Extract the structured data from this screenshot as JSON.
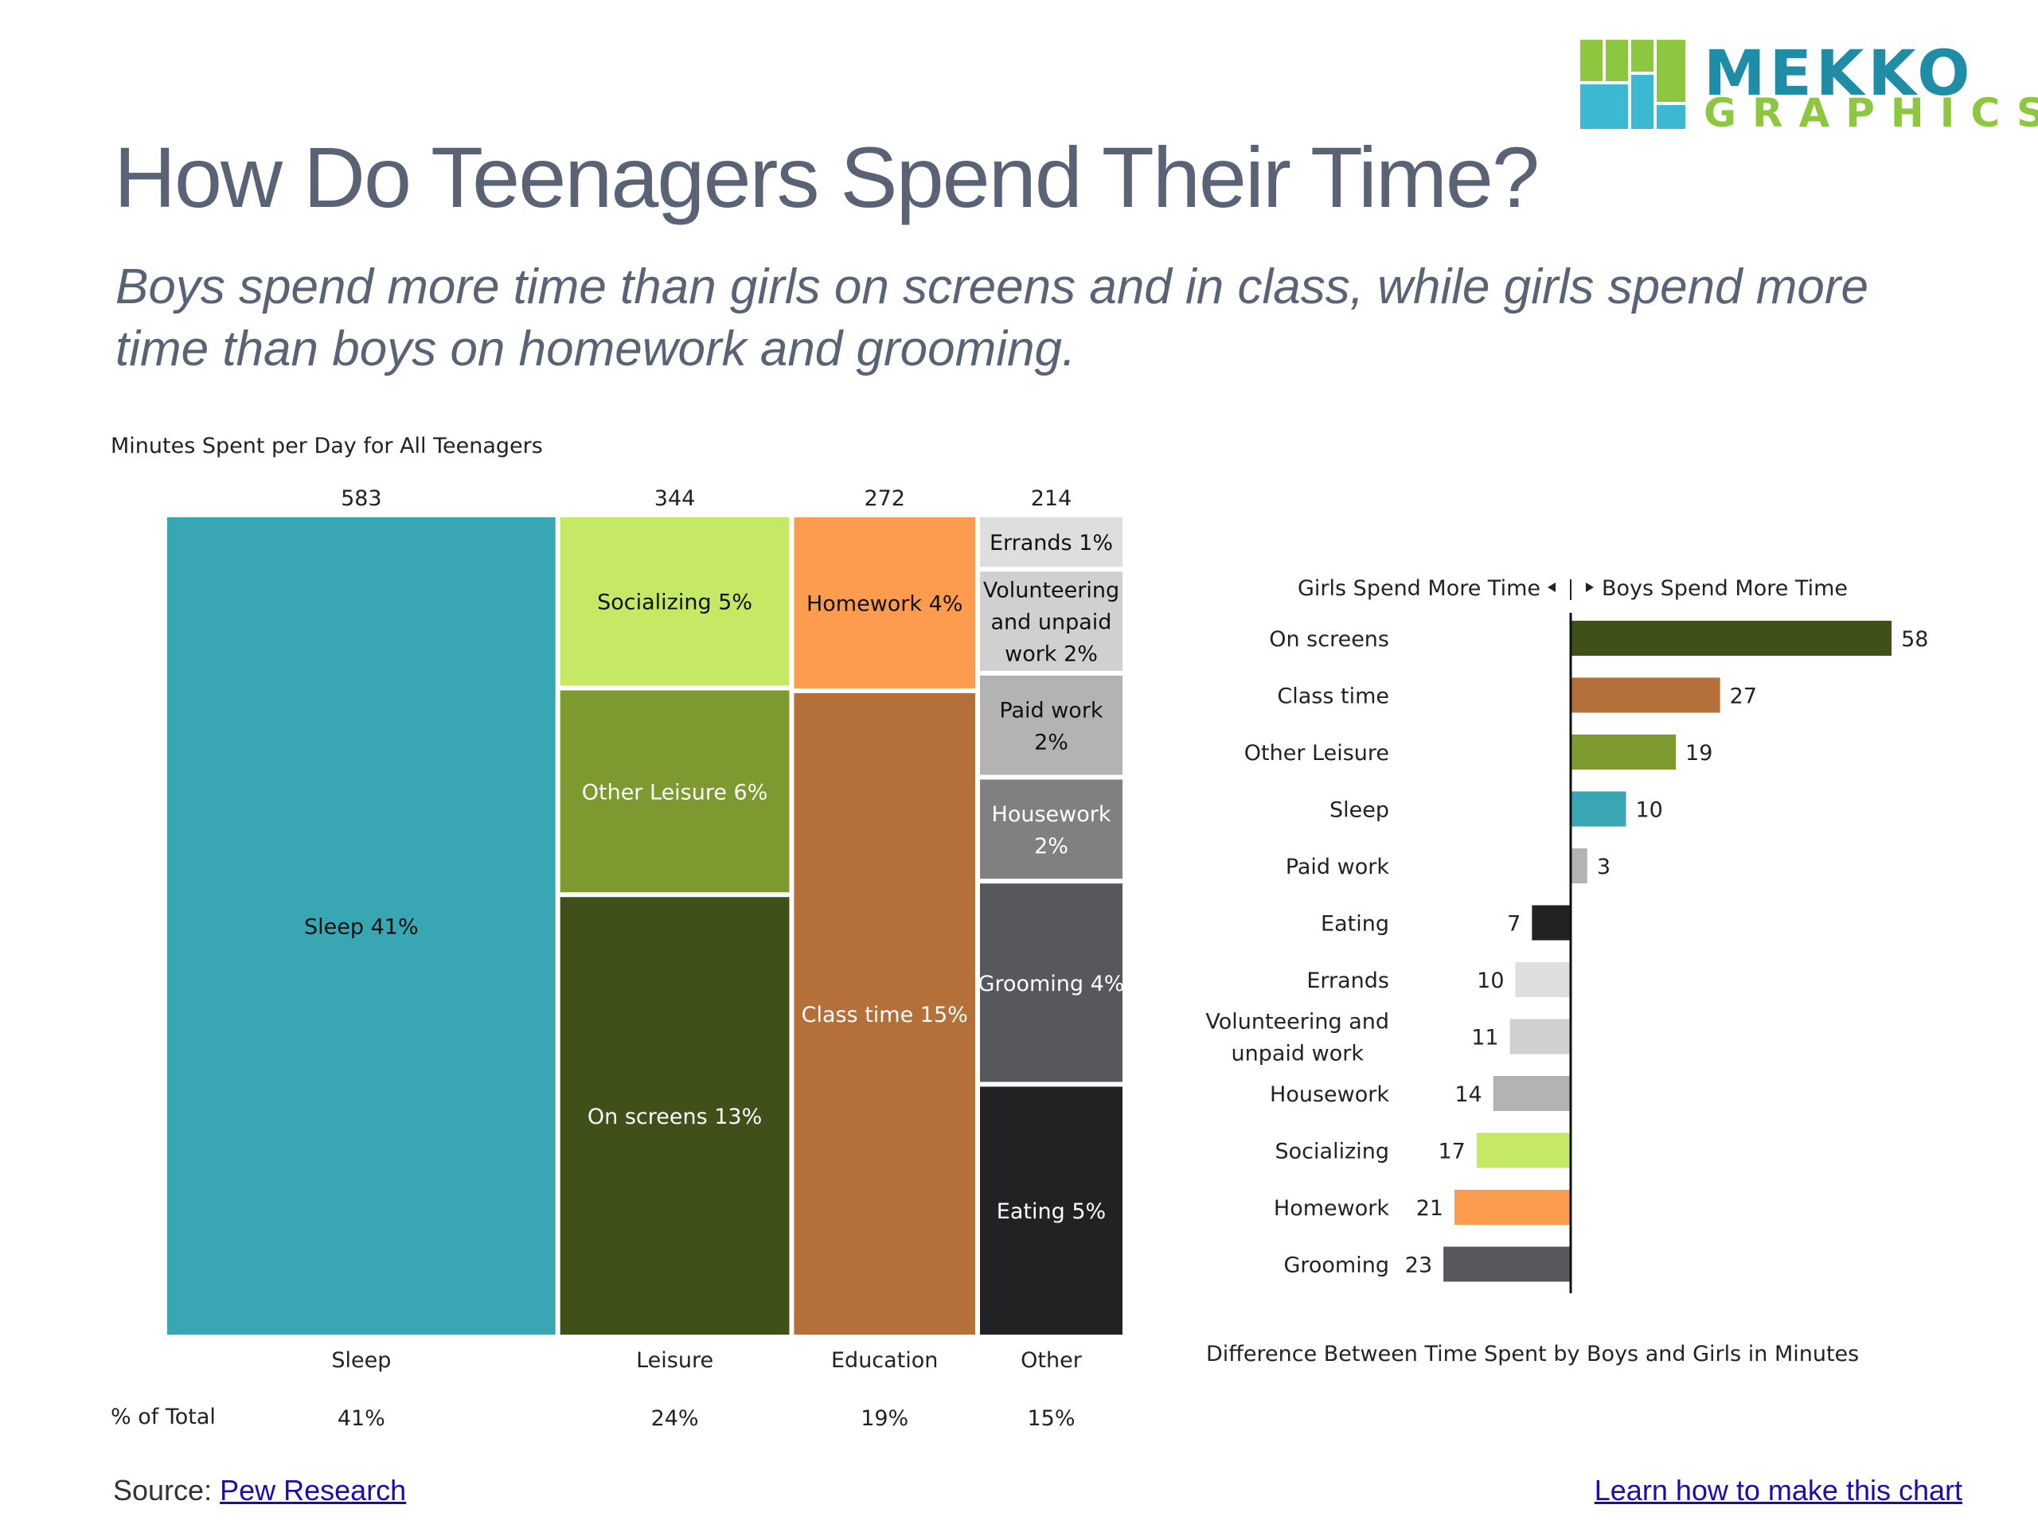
{
  "logo": {
    "word1": "MEKKO",
    "word2": "GRAPHICS",
    "colors": {
      "blue": "#3db8d2",
      "green": "#8dc63f",
      "teal": "#1f8da6"
    }
  },
  "title": "How Do Teenagers Spend Their Time?",
  "subtitle": "Boys spend more time than girls on screens and in class, while girls spend more time than boys on homework and grooming.",
  "chart_data": [
    {
      "type": "mekko",
      "title": "Minutes Spent per Day for All Teenagers",
      "row_label": "% of Total",
      "columns": [
        {
          "name": "Sleep",
          "total": 583,
          "pct_label": "41%",
          "segments": [
            {
              "label": "Sleep 41%",
              "value": 41,
              "color": "#38a6b3",
              "text_color": "#111111"
            }
          ]
        },
        {
          "name": "Leisure",
          "total": 344,
          "pct_label": "24%",
          "segments": [
            {
              "label": "Socializing 5%",
              "value": 5,
              "color": "#c5e964",
              "text_color": "#111111"
            },
            {
              "label": "Other Leisure 6%",
              "value": 6,
              "color": "#7c9a30",
              "text_color": "#ffffff"
            },
            {
              "label": "On screens 13%",
              "value": 13,
              "color": "#3f5019",
              "text_color": "#ffffff"
            }
          ]
        },
        {
          "name": "Education",
          "total": 272,
          "pct_label": "19%",
          "segments": [
            {
              "label": "Homework 4%",
              "value": 4,
              "color": "#fd9b4f",
              "text_color": "#111111"
            },
            {
              "label": "Class time 15%",
              "value": 15,
              "color": "#b56f39",
              "text_color": "#ffffff"
            }
          ]
        },
        {
          "name": "Other",
          "total": 214,
          "pct_label": "15%",
          "segments": [
            {
              "label": "Errands 1%",
              "value": 1,
              "color": "#dedede",
              "text_color": "#111111"
            },
            {
              "label": "Volunteering and unpaid work 2%",
              "value": 2,
              "color": "#d0d0d0",
              "text_color": "#111111"
            },
            {
              "label": "Paid work 2%",
              "value": 2,
              "color": "#b3b3b3",
              "text_color": "#111111"
            },
            {
              "label": "Housework 2%",
              "value": 2,
              "color": "#808080",
              "text_color": "#ffffff"
            },
            {
              "label": "Grooming 4%",
              "value": 4,
              "color": "#57585c",
              "text_color": "#ffffff"
            },
            {
              "label": "Eating 5%",
              "value": 5,
              "color": "#222124",
              "text_color": "#ffffff"
            }
          ]
        }
      ]
    },
    {
      "type": "bar",
      "orientation": "horizontal-diverging",
      "header_left": "Girls Spend More Time",
      "header_right": "Boys Spend More Time",
      "xlabel": "Difference Between Time Spent by Boys and Girls in Minutes",
      "xlim": [
        -25,
        60
      ],
      "categories": [
        "On screens",
        "Class time",
        "Other Leisure",
        "Sleep",
        "Paid work",
        "Eating",
        "Errands",
        "Volunteering and unpaid work",
        "Housework",
        "Socializing",
        "Homework",
        "Grooming"
      ],
      "values": [
        58,
        27,
        19,
        10,
        3,
        -7,
        -10,
        -11,
        -14,
        -17,
        -21,
        -23
      ],
      "colors": [
        "#3f5019",
        "#b56f39",
        "#7c9a30",
        "#38a6b3",
        "#b3b3b3",
        "#222124",
        "#dedede",
        "#d0d0d0",
        "#b3b3b3",
        "#c5e964",
        "#fd9b4f",
        "#57585c"
      ]
    }
  ],
  "footer": {
    "source_prefix": "Source:",
    "source_link": "Pew Research",
    "learn_link": "Learn how to make this chart"
  }
}
